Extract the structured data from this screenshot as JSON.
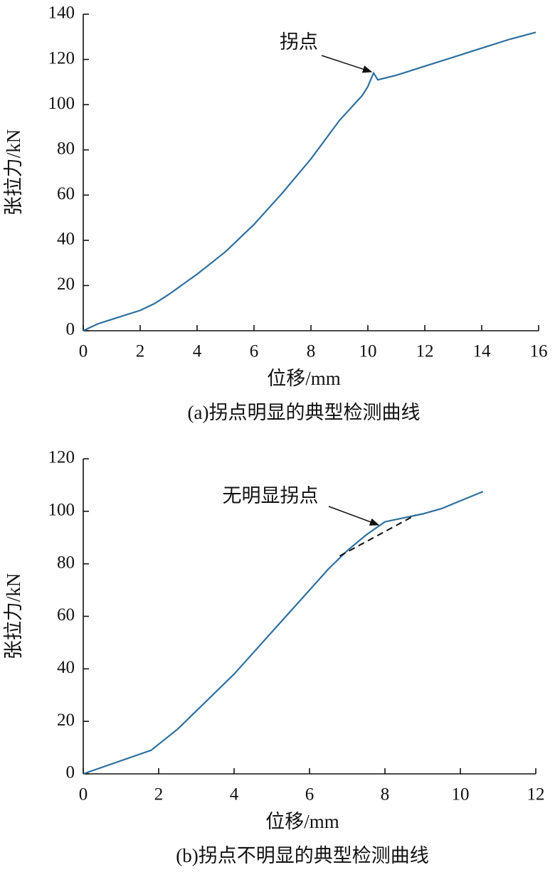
{
  "chart_data": [
    {
      "type": "line",
      "caption": "(a)拐点明显的典型检测曲线",
      "x_label": "位移/mm",
      "y_label": "张拉力/kN",
      "annotation": "拐点",
      "color": "#2e6f9e",
      "x": [
        0,
        0.5,
        1,
        2,
        2.5,
        3,
        4,
        5,
        6,
        7,
        8,
        9,
        9.8,
        10,
        10.2,
        10.35,
        11,
        12,
        13,
        14,
        15,
        15.9
      ],
      "values": [
        0,
        3,
        5,
        9,
        12,
        16,
        25,
        35,
        47,
        61,
        76,
        93,
        104,
        108,
        114,
        111,
        113,
        117,
        121,
        125,
        129,
        132
      ],
      "xlim": [
        0,
        16
      ],
      "xticks": [
        0,
        2,
        4,
        6,
        8,
        10,
        12,
        14,
        16
      ],
      "ylim": [
        0,
        140
      ],
      "yticks": [
        0,
        20,
        40,
        60,
        80,
        100,
        120,
        140
      ]
    },
    {
      "type": "line",
      "caption": "(b)拐点不明显的典型检测曲线",
      "x_label": "位移/mm",
      "y_label": "张拉力/kN",
      "annotation": "无明显拐点",
      "color": "#2e6f9e",
      "x": [
        0,
        1.8,
        2.5,
        3,
        3.5,
        4,
        4.5,
        5,
        5.5,
        6,
        6.5,
        7,
        7.5,
        8,
        8.5,
        9,
        9.5,
        10,
        10.6
      ],
      "values": [
        0,
        9,
        17,
        24,
        31,
        38,
        46,
        54,
        62,
        70,
        78,
        85,
        91,
        96,
        97.5,
        99,
        101,
        104,
        107.5
      ],
      "reference_line": {
        "x": [
          6.8,
          8.8
        ],
        "values": [
          83,
          98.5
        ]
      },
      "xlim": [
        0,
        12
      ],
      "xticks": [
        0,
        2,
        4,
        6,
        8,
        10,
        12
      ],
      "ylim": [
        0,
        120
      ],
      "yticks": [
        0,
        20,
        40,
        60,
        80,
        100,
        120
      ]
    }
  ]
}
